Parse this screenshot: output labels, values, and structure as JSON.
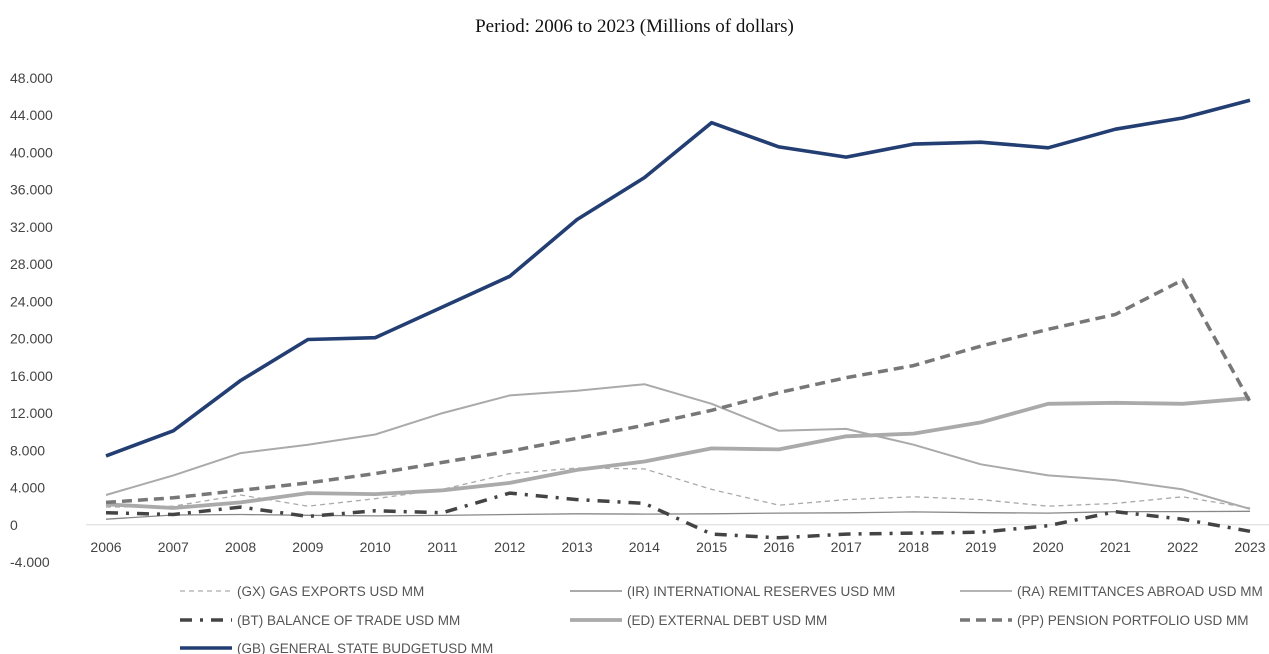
{
  "chart_data": {
    "type": "line",
    "title": "Period: 2006 to 2023 (Millions of dollars)",
    "xlabel": "",
    "ylabel": "",
    "x": [
      "2006",
      "2007",
      "2008",
      "2009",
      "2010",
      "2011",
      "2012",
      "2013",
      "2014",
      "2015",
      "2016",
      "2017",
      "2018",
      "2019",
      "2020",
      "2021",
      "2022",
      "2023"
    ],
    "ylim": [
      -4000,
      48000
    ],
    "yticks": [
      -4000,
      0,
      4000,
      8000,
      12000,
      16000,
      20000,
      24000,
      28000,
      32000,
      36000,
      40000,
      44000,
      48000
    ],
    "ytick_labels": [
      "-4.000",
      "0",
      "4.000",
      "8.000",
      "12.000",
      "16.000",
      "20.000",
      "24.000",
      "28.000",
      "32.000",
      "36.000",
      "40.000",
      "44.000",
      "48.000"
    ],
    "grid": false,
    "legend_position": "bottom",
    "series": [
      {
        "name": "(GX) GAS EXPORTS USD MM",
        "color": "#aaaaaa",
        "style": "dashed-thin",
        "values": [
          1900,
          2000,
          3200,
          2000,
          2800,
          3800,
          5500,
          6100,
          6000,
          3800,
          2100,
          2700,
          3000,
          2700,
          2000,
          2300,
          3000,
          1800
        ]
      },
      {
        "name": "(IR) INTERNATIONAL RESERVES USD MM",
        "color": "#aaaaaa",
        "style": "solid-medium",
        "values": [
          3200,
          5300,
          7700,
          8600,
          9700,
          12000,
          13900,
          14400,
          15100,
          13000,
          10100,
          10300,
          8600,
          6500,
          5300,
          4800,
          3800,
          1700
        ]
      },
      {
        "name": "(RA) REMITTANCES ABROAD USD MM",
        "color": "#888888",
        "style": "solid-thin",
        "values": [
          600,
          1050,
          1100,
          1020,
          950,
          1010,
          1100,
          1180,
          1150,
          1180,
          1250,
          1290,
          1380,
          1300,
          1250,
          1400,
          1420,
          1450
        ]
      },
      {
        "name": "(BT) BALANCE OF TRADE USD MM",
        "color": "#444444",
        "style": "dashdot-thick",
        "values": [
          1300,
          1100,
          1900,
          900,
          1500,
          1300,
          3400,
          2700,
          2300,
          -1000,
          -1400,
          -1000,
          -900,
          -800,
          -100,
          1400,
          600,
          -700
        ]
      },
      {
        "name": "(ED) EXTERNAL DEBT USD MM",
        "color": "#aaaaaa",
        "style": "solid-thick",
        "values": [
          2200,
          1800,
          2400,
          3400,
          3300,
          3700,
          4500,
          5900,
          6800,
          8200,
          8100,
          9500,
          9800,
          11000,
          13000,
          13100,
          13000,
          13600
        ]
      },
      {
        "name": "(PP) PENSION PORTFOLIO USD MM",
        "color": "#777777",
        "style": "dashed-thick",
        "values": [
          2400,
          2900,
          3700,
          4500,
          5500,
          6700,
          7900,
          9300,
          10700,
          12300,
          14200,
          15800,
          17100,
          19200,
          21000,
          22600,
          26300,
          13200
        ]
      },
      {
        "name": "(GB) GENERAL STATE BUDGETUSD MM",
        "color": "#233e72",
        "style": "solid-xthick",
        "values": [
          7400,
          10100,
          15500,
          19900,
          20100,
          23400,
          26700,
          32800,
          37300,
          43200,
          40600,
          39500,
          40900,
          41100,
          40500,
          42500,
          43700,
          45600
        ]
      }
    ]
  }
}
